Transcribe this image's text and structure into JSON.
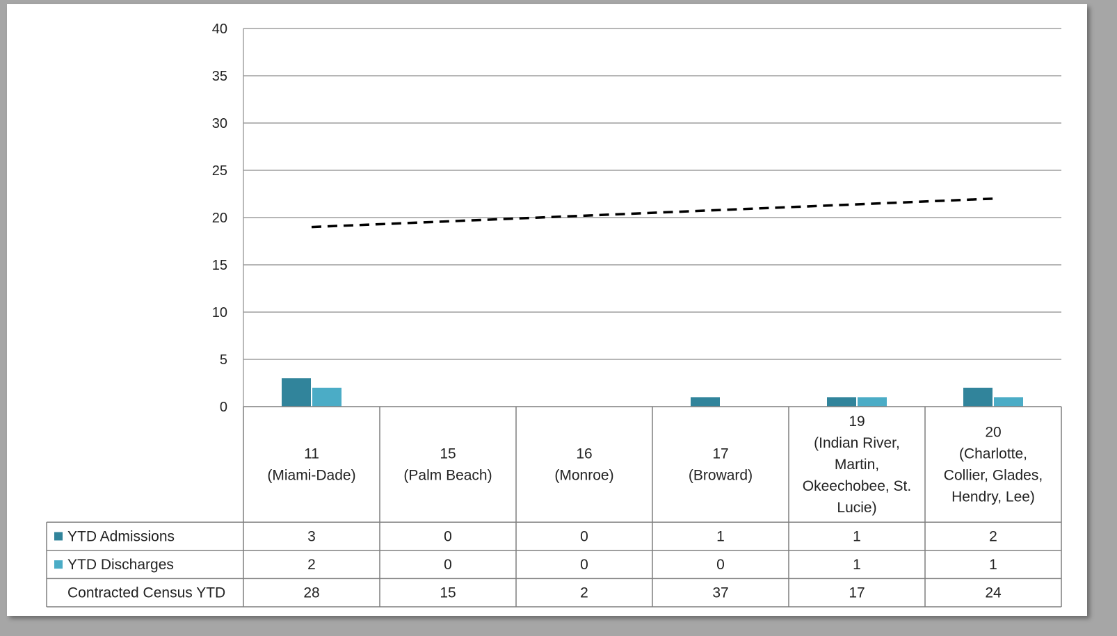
{
  "chart_data": {
    "type": "bar",
    "title": "",
    "xlabel": "",
    "ylabel": "",
    "ylim": [
      0,
      40
    ],
    "yticks": [
      0,
      5,
      10,
      15,
      20,
      25,
      30,
      35,
      40
    ],
    "categories": [
      [
        "11",
        "(Miami-Dade)"
      ],
      [
        "15",
        "(Palm Beach)"
      ],
      [
        "16",
        "(Monroe)"
      ],
      [
        "17",
        "(Broward)"
      ],
      [
        "19",
        "(Indian River,",
        "Martin,",
        "Okeechobee, St.",
        "Lucie)"
      ],
      [
        "20",
        "(Charlotte,",
        "Collier, Glades,",
        "Hendry, Lee)"
      ]
    ],
    "series": [
      {
        "name": "YTD Admissions",
        "type": "bar",
        "color": "#31849b",
        "values": [
          3,
          0,
          0,
          1,
          1,
          2
        ]
      },
      {
        "name": "YTD Discharges",
        "type": "bar",
        "color": "#4bacc6",
        "values": [
          2,
          0,
          0,
          0,
          1,
          1
        ]
      },
      {
        "name": "Contracted Census YTD",
        "type": "table-only",
        "values": [
          28,
          15,
          2,
          37,
          17,
          24
        ]
      }
    ],
    "trendline": {
      "style": "dashed",
      "color": "#000000",
      "start": 19,
      "end": 22
    },
    "grid": true,
    "legend": "data-table"
  }
}
